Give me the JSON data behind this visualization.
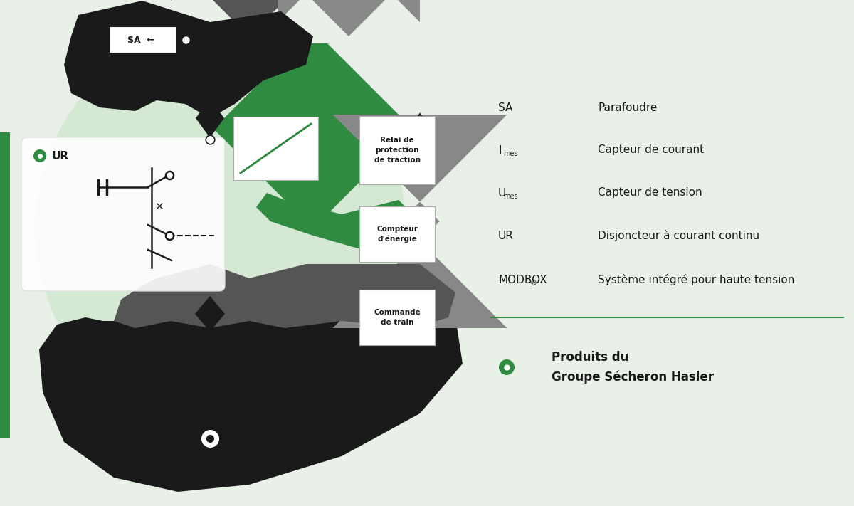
{
  "bg": "#e8f0e8",
  "green": "#2e8b3f",
  "black": "#1a1a1a",
  "dark_gray": "#555555",
  "med_gray": "#888888",
  "light_gray": "#aaaaaa",
  "light_green_bg": "#d4e8d4",
  "white": "#ffffff",
  "legend_items": [
    {
      "key": "SA",
      "sub": "",
      "value": "Parafoudre"
    },
    {
      "key": "I",
      "sub": "mes",
      "value": "Capteur de courant"
    },
    {
      "key": "U",
      "sub": "mes",
      "value": "Capteur de tension"
    },
    {
      "key": "UR",
      "sub": "",
      "value": "Disjoncteur à courant continu"
    },
    {
      "key": "MODBOX",
      "sub": "®",
      "value": "Système intégré pour haute tension"
    }
  ],
  "group_label": "Produits du\nGroupe Sécheron Hasler"
}
